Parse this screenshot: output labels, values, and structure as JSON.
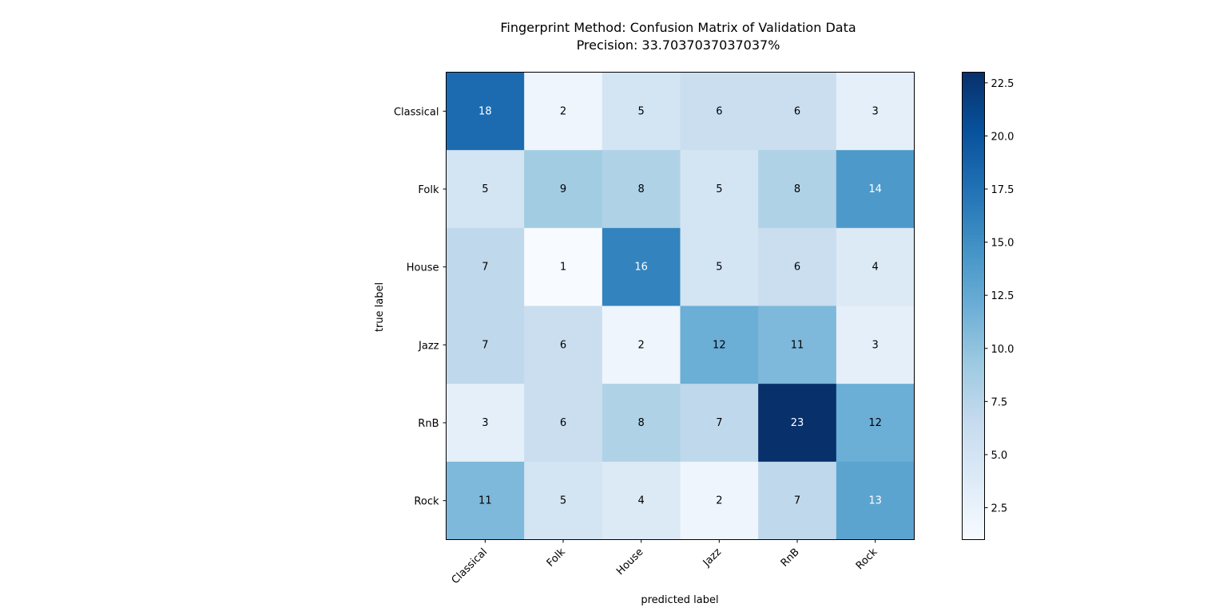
{
  "chart_data": {
    "type": "heatmap",
    "title": "Fingerprint Method: Confusion Matrix of Validation Data",
    "subtitle": "Precision: 33.7037037037037%",
    "xlabel": "predicted label",
    "ylabel": "true label",
    "x_categories": [
      "Classical",
      "Folk",
      "House",
      "Jazz",
      "RnB",
      "Rock"
    ],
    "y_categories": [
      "Classical",
      "Folk",
      "House",
      "Jazz",
      "RnB",
      "Rock"
    ],
    "matrix": [
      [
        18,
        2,
        5,
        6,
        6,
        3
      ],
      [
        5,
        9,
        8,
        5,
        8,
        14
      ],
      [
        7,
        1,
        16,
        5,
        6,
        4
      ],
      [
        7,
        6,
        2,
        12,
        11,
        3
      ],
      [
        3,
        6,
        8,
        7,
        23,
        12
      ],
      [
        11,
        5,
        4,
        2,
        7,
        13
      ]
    ],
    "colormap": "Blues",
    "vmin": 1,
    "vmax": 23,
    "colorbar_ticks": [
      "2.5",
      "5.0",
      "7.5",
      "10.0",
      "12.5",
      "15.0",
      "17.5",
      "20.0",
      "22.5"
    ],
    "colorbar_tick_values": [
      2.5,
      5.0,
      7.5,
      10.0,
      12.5,
      15.0,
      17.5,
      20.0,
      22.5
    ],
    "text_light_color": "#ffffff",
    "text_dark_color": "#000000"
  }
}
